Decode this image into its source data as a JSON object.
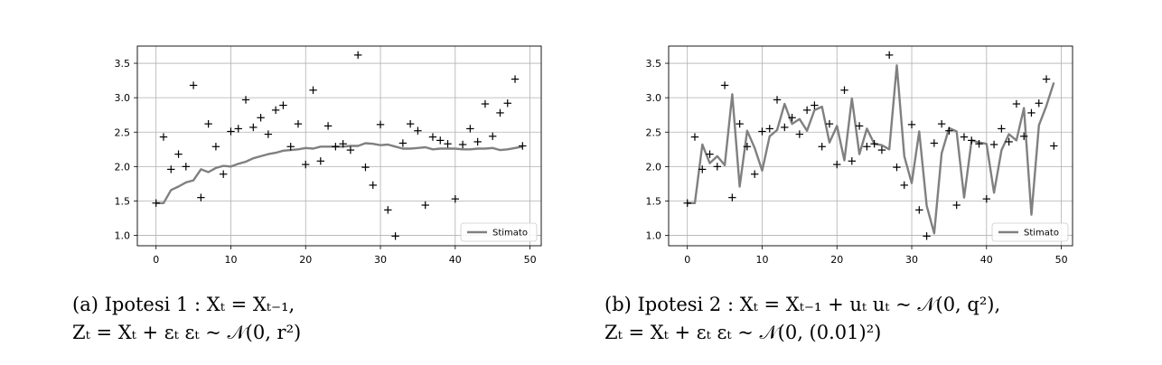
{
  "chart_data": [
    {
      "type": "line",
      "xlim": [
        -2.5,
        51.5
      ],
      "ylim": [
        0.85,
        3.75
      ],
      "xticks": [
        0,
        10,
        20,
        30,
        40,
        50
      ],
      "yticks": [
        1.0,
        1.5,
        2.0,
        2.5,
        3.0,
        3.5
      ],
      "xtick_labels": [
        "0",
        "10",
        "20",
        "30",
        "40",
        "50"
      ],
      "ytick_labels": [
        "1.0",
        "1.5",
        "2.0",
        "2.5",
        "3.0",
        "3.5"
      ],
      "grid": true,
      "legend": "lower-right",
      "observations": {
        "x": [
          0,
          1,
          2,
          3,
          4,
          5,
          6,
          7,
          8,
          9,
          10,
          11,
          12,
          13,
          14,
          15,
          16,
          17,
          18,
          19,
          20,
          21,
          22,
          23,
          24,
          25,
          26,
          27,
          28,
          29,
          30,
          31,
          32,
          33,
          34,
          35,
          36,
          37,
          38,
          39,
          40,
          41,
          42,
          43,
          44,
          45,
          46,
          47,
          48,
          49
        ],
        "y": [
          1.47,
          2.43,
          1.96,
          2.18,
          2.0,
          3.18,
          1.55,
          2.62,
          2.29,
          1.89,
          2.51,
          2.55,
          2.97,
          2.57,
          2.71,
          2.47,
          2.82,
          2.89,
          2.29,
          2.62,
          2.03,
          3.11,
          2.08,
          2.59,
          2.29,
          2.33,
          2.24,
          3.62,
          1.99,
          1.73,
          2.61,
          1.37,
          0.99,
          2.34,
          2.62,
          2.52,
          1.44,
          2.43,
          2.38,
          2.33,
          1.53,
          2.32,
          2.55,
          2.36,
          2.91,
          2.44,
          2.78,
          2.92,
          3.27,
          2.3
        ]
      },
      "series": [
        {
          "name": "Stimato",
          "color": "#808080",
          "x": [
            0,
            1,
            2,
            3,
            4,
            5,
            6,
            7,
            8,
            9,
            10,
            11,
            12,
            13,
            14,
            15,
            16,
            17,
            18,
            19,
            20,
            21,
            22,
            23,
            24,
            25,
            26,
            27,
            28,
            29,
            30,
            31,
            32,
            33,
            34,
            35,
            36,
            37,
            38,
            39,
            40,
            41,
            42,
            43,
            44,
            45,
            46,
            47,
            48,
            49
          ],
          "y": [
            1.47,
            1.47,
            1.66,
            1.71,
            1.77,
            1.8,
            1.96,
            1.92,
            1.98,
            2.01,
            2.0,
            2.04,
            2.07,
            2.12,
            2.15,
            2.18,
            2.2,
            2.23,
            2.24,
            2.25,
            2.27,
            2.26,
            2.29,
            2.29,
            2.29,
            2.29,
            2.3,
            2.3,
            2.34,
            2.33,
            2.31,
            2.32,
            2.29,
            2.26,
            2.26,
            2.27,
            2.28,
            2.25,
            2.26,
            2.26,
            2.26,
            2.25,
            2.25,
            2.26,
            2.26,
            2.27,
            2.24,
            2.25,
            2.27,
            2.29
          ]
        }
      ]
    },
    {
      "type": "line",
      "xlim": [
        -2.5,
        51.5
      ],
      "ylim": [
        0.85,
        3.75
      ],
      "xticks": [
        0,
        10,
        20,
        30,
        40,
        50
      ],
      "yticks": [
        1.0,
        1.5,
        2.0,
        2.5,
        3.0,
        3.5
      ],
      "xtick_labels": [
        "0",
        "10",
        "20",
        "30",
        "40",
        "50"
      ],
      "ytick_labels": [
        "1.0",
        "1.5",
        "2.0",
        "2.5",
        "3.0",
        "3.5"
      ],
      "grid": true,
      "legend": "lower-right",
      "observations": {
        "x": [
          0,
          1,
          2,
          3,
          4,
          5,
          6,
          7,
          8,
          9,
          10,
          11,
          12,
          13,
          14,
          15,
          16,
          17,
          18,
          19,
          20,
          21,
          22,
          23,
          24,
          25,
          26,
          27,
          28,
          29,
          30,
          31,
          32,
          33,
          34,
          35,
          36,
          37,
          38,
          39,
          40,
          41,
          42,
          43,
          44,
          45,
          46,
          47,
          48,
          49
        ],
        "y": [
          1.47,
          2.43,
          1.96,
          2.18,
          2.0,
          3.18,
          1.55,
          2.62,
          2.29,
          1.89,
          2.51,
          2.55,
          2.97,
          2.57,
          2.71,
          2.47,
          2.82,
          2.89,
          2.29,
          2.62,
          2.03,
          3.11,
          2.08,
          2.59,
          2.29,
          2.33,
          2.24,
          3.62,
          1.99,
          1.73,
          2.61,
          1.37,
          0.99,
          2.34,
          2.62,
          2.52,
          1.44,
          2.43,
          2.38,
          2.33,
          1.53,
          2.32,
          2.55,
          2.36,
          2.91,
          2.44,
          2.78,
          2.92,
          3.27,
          2.3
        ]
      },
      "series": [
        {
          "name": "Stimato",
          "color": "#808080",
          "x": [
            0,
            1,
            2,
            3,
            4,
            5,
            6,
            7,
            8,
            9,
            10,
            11,
            12,
            13,
            14,
            15,
            16,
            17,
            18,
            19,
            20,
            21,
            22,
            23,
            24,
            25,
            26,
            27,
            28,
            29,
            30,
            31,
            32,
            33,
            34,
            35,
            36,
            37,
            38,
            39,
            40,
            41,
            42,
            43,
            44,
            45,
            46,
            47,
            48,
            49
          ],
          "y": [
            1.47,
            1.47,
            2.32,
            2.05,
            2.15,
            2.02,
            3.05,
            1.71,
            2.52,
            2.27,
            1.94,
            2.44,
            2.53,
            2.91,
            2.62,
            2.69,
            2.52,
            2.82,
            2.87,
            2.35,
            2.59,
            2.09,
            2.99,
            2.18,
            2.55,
            2.33,
            2.31,
            2.25,
            3.47,
            2.15,
            1.76,
            2.51,
            1.43,
            1.03,
            2.19,
            2.56,
            2.51,
            1.55,
            2.38,
            2.35,
            2.33,
            1.62,
            2.24,
            2.47,
            2.38,
            2.85,
            1.3,
            2.6,
            2.88,
            3.22
          ]
        }
      ]
    }
  ],
  "captions": [
    {
      "line1": "(a) Ipotesi 1 : Xₜ = Xₜ₋₁,",
      "line2": "Zₜ = Xₜ + εₜ  εₜ ~ 𝒩(0, r²)"
    },
    {
      "line1": "(b) Ipotesi 2 : Xₜ = Xₜ₋₁ + uₜ  uₜ ~ 𝒩(0, q²),",
      "line2": "Zₜ = Xₜ + εₜ  εₜ ~ 𝒩(0, (0.01)²)"
    }
  ]
}
